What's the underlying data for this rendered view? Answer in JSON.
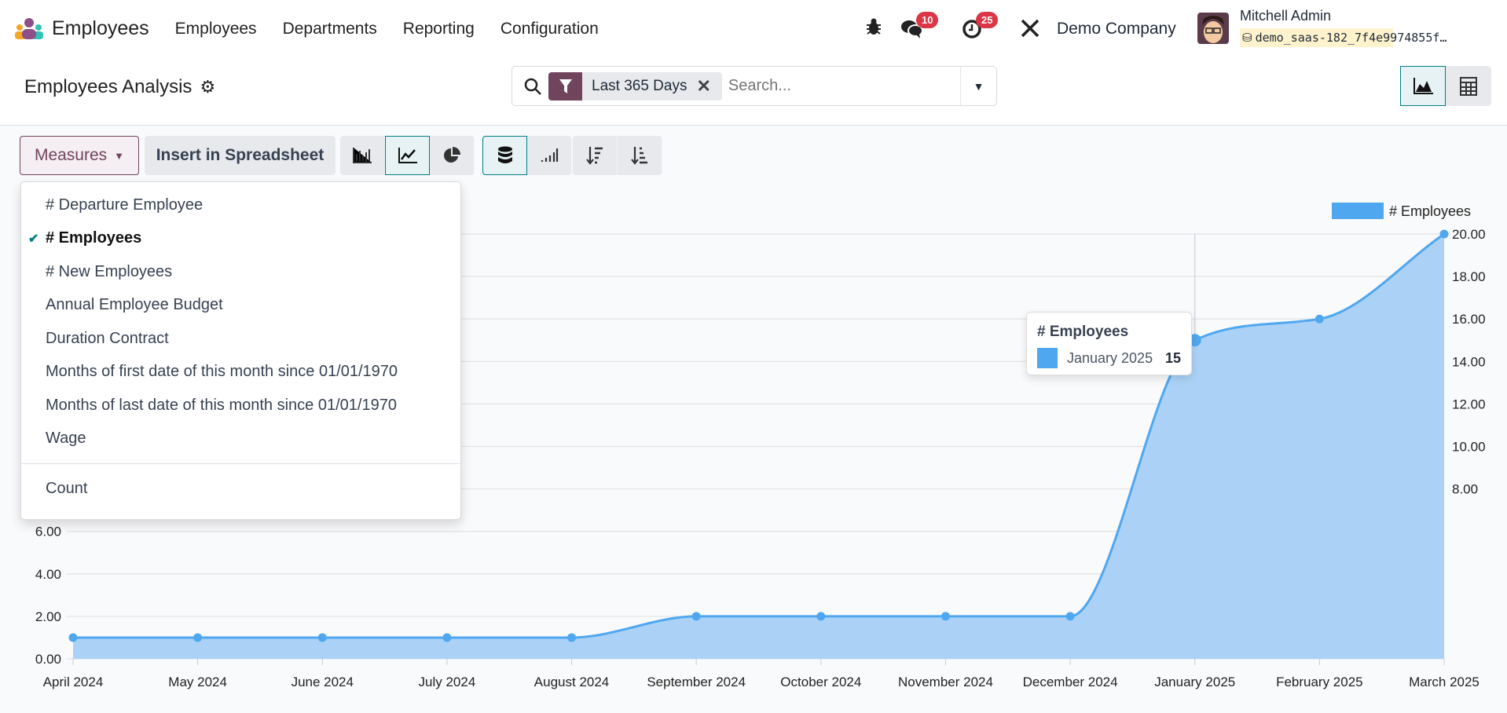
{
  "nav": {
    "app_name": "Employees",
    "menus": [
      "Employees",
      "Departments",
      "Reporting",
      "Configuration"
    ],
    "messages_count": "10",
    "activities_count": "25",
    "company": "Demo Company",
    "user_name": "Mitchell Admin",
    "database": "demo_saas-182_7f4e9974855f…"
  },
  "control_panel": {
    "title": "Employees Analysis",
    "facet": "Last 365 Days",
    "search_placeholder": "Search..."
  },
  "toolbar": {
    "measures_label": "Measures",
    "insert_label": "Insert in Spreadsheet"
  },
  "measures_menu": {
    "items": [
      {
        "label": "# Departure Employee",
        "checked": false
      },
      {
        "label": "# Employees",
        "checked": true
      },
      {
        "label": "# New Employees",
        "checked": false
      },
      {
        "label": "Annual Employee Budget",
        "checked": false
      },
      {
        "label": "Duration Contract",
        "checked": false
      },
      {
        "label": "Months of first date of this month since 01/01/1970",
        "checked": false
      },
      {
        "label": "Months of last date of this month since 01/01/1970",
        "checked": false
      },
      {
        "label": "Wage",
        "checked": false
      }
    ],
    "count_label": "Count"
  },
  "tooltip": {
    "title": "# Employees",
    "label": "January 2025",
    "value": "15"
  },
  "colors": {
    "series": "#4fa7f0",
    "fill": "#a6d0f5",
    "accent": "#017e84",
    "brand": "#71445e",
    "badge": "#dc3545"
  },
  "chart_data": {
    "type": "area",
    "categories": [
      "April 2024",
      "May 2024",
      "June 2024",
      "July 2024",
      "August 2024",
      "September 2024",
      "October 2024",
      "November 2024",
      "December 2024",
      "January 2025",
      "February 2025",
      "March 2025"
    ],
    "series": [
      {
        "name": "# Employees",
        "values": [
          1,
          1,
          1,
          1,
          1,
          2,
          2,
          2,
          2,
          15,
          16,
          20
        ]
      }
    ],
    "ylim": [
      0,
      20
    ],
    "yticks": [
      "0.00",
      "2.00",
      "4.00",
      "6.00",
      "8.00",
      "10.00",
      "12.00",
      "14.00",
      "16.00",
      "18.00",
      "20.00"
    ],
    "grid": true,
    "legend": "top-right",
    "highlighted": "January 2025"
  }
}
